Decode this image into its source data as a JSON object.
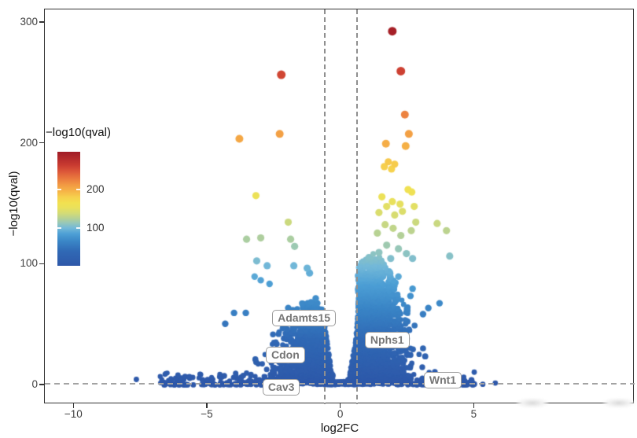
{
  "figure": {
    "background": "#ffffff",
    "panel_border_color": "#333333",
    "tick_label_color": "#404040",
    "threshold_line_color": "#8f8f8f",
    "gene_label_text_color": "#767676",
    "gene_label_border_color": "#9b9b9b"
  },
  "axis": {
    "x_title": "log2FC",
    "y_title": "−log10(qval)"
  },
  "legend": {
    "title": "−log10(qval)"
  },
  "chart_data": {
    "type": "scatter",
    "subtype": "volcano-plot",
    "title": "",
    "xlabel": "log2FC",
    "ylabel": "−log10(qval)",
    "xlim": [
      -11.1,
      11.0
    ],
    "ylim": [
      -15.5,
      311
    ],
    "grid": false,
    "legend_position": "left",
    "x_ticks": [
      {
        "v": -10,
        "label": "−10"
      },
      {
        "v": -5,
        "label": "−5"
      },
      {
        "v": 0,
        "label": "0"
      },
      {
        "v": 5,
        "label": "5"
      }
    ],
    "y_ticks": [
      {
        "v": 0,
        "label": "0"
      },
      {
        "v": 100,
        "label": "100"
      },
      {
        "v": 200,
        "label": "200"
      },
      {
        "v": 300,
        "label": "300"
      }
    ],
    "thresholds": {
      "vlines": [
        -0.6,
        0.6
      ],
      "hline": 1.3,
      "style": "dashed"
    },
    "colorbar": {
      "title": "−log10(qval)",
      "range": [
        2,
        298
      ],
      "ticks": [
        {
          "v": 200,
          "label": "200"
        },
        {
          "v": 100,
          "label": "100"
        }
      ]
    },
    "color_scale_stops": [
      [
        2,
        "#2e58a9"
      ],
      [
        40,
        "#3069b5"
      ],
      [
        65,
        "#3a85c6"
      ],
      [
        85,
        "#4d9fd5"
      ],
      [
        100,
        "#74b9d8"
      ],
      [
        112,
        "#94c6bb"
      ],
      [
        124,
        "#b3d098"
      ],
      [
        138,
        "#d2db77"
      ],
      [
        152,
        "#e9e15c"
      ],
      [
        165,
        "#f2e150"
      ],
      [
        180,
        "#f6d14d"
      ],
      [
        195,
        "#f6b547"
      ],
      [
        212,
        "#f29a43"
      ],
      [
        228,
        "#ea7a3e"
      ],
      [
        245,
        "#dd5a39"
      ],
      [
        262,
        "#cb3d31"
      ],
      [
        280,
        "#b52a2b"
      ],
      [
        298,
        "#a01c26"
      ]
    ],
    "gene_labels": [
      {
        "text": "Adamts15",
        "x": -2.58,
        "y": 62.6
      },
      {
        "text": "Cdon",
        "x": -2.82,
        "y": 32.0
      },
      {
        "text": "Cav3",
        "x": -2.94,
        "y": 5.3
      },
      {
        "text": "Nphs1",
        "x": 0.89,
        "y": 44.3
      },
      {
        "text": "Wnt1",
        "x": 3.1,
        "y": 11.2
      }
    ],
    "outlier_points": [
      {
        "r": 5.5,
        "pts": [
          [
            1.92,
            293
          ],
          [
            2.24,
            260
          ],
          [
            -2.24,
            257
          ]
        ]
      },
      {
        "r": 5.0,
        "pts": [
          [
            2.39,
            224
          ],
          [
            -2.3,
            208
          ],
          [
            2.54,
            208
          ],
          [
            -3.81,
            204
          ],
          [
            1.68,
            200
          ],
          [
            2.42,
            198
          ]
        ]
      },
      {
        "r": 4.6,
        "pts": [
          [
            1.77,
            185
          ],
          [
            2.01,
            183
          ],
          [
            1.62,
            181
          ],
          [
            1.89,
            179
          ],
          [
            2.51,
            162
          ],
          [
            2.65,
            160
          ],
          [
            -3.19,
            157
          ],
          [
            1.53,
            156
          ],
          [
            1.92,
            152
          ],
          [
            2.21,
            150
          ],
          [
            1.71,
            148
          ],
          [
            2.74,
            148
          ],
          [
            2.3,
            144
          ],
          [
            1.42,
            143
          ],
          [
            2.01,
            141
          ],
          [
            -1.98,
            135
          ],
          [
            2.8,
            135
          ],
          [
            3.6,
            134
          ],
          [
            1.65,
            133
          ],
          [
            1.95,
            130
          ],
          [
            2.63,
            128
          ],
          [
            3.95,
            128
          ],
          [
            1.36,
            126
          ],
          [
            2.24,
            124
          ],
          [
            -3.01,
            122
          ],
          [
            -3.54,
            121
          ],
          [
            -1.89,
            121
          ],
          [
            1.71,
            116
          ],
          [
            -1.74,
            115
          ],
          [
            2.15,
            113
          ],
          [
            1.42,
            110
          ],
          [
            2.45,
            109
          ],
          [
            4.07,
            107
          ],
          [
            2.68,
            105
          ],
          [
            1.86,
            105
          ],
          [
            -3.16,
            103
          ],
          [
            1.12,
            103
          ],
          [
            -2.77,
            99
          ],
          [
            -1.77,
            99
          ],
          [
            -1.27,
            97
          ],
          [
            -1.18,
            93
          ]
        ]
      },
      {
        "r": 4.2,
        "pts": [
          [
            1.06,
            92
          ],
          [
            -3.24,
            90
          ],
          [
            2.15,
            90
          ],
          [
            0.77,
            89
          ],
          [
            -3.01,
            87
          ],
          [
            1.3,
            87
          ],
          [
            -2.68,
            84
          ],
          [
            2.68,
            80
          ],
          [
            0.91,
            79
          ],
          [
            2.6,
            74
          ],
          [
            -0.95,
            72
          ],
          [
            3.69,
            68
          ],
          [
            -0.89,
            68
          ],
          [
            -0.94,
            65
          ],
          [
            -1.98,
            64
          ],
          [
            3.27,
            64
          ],
          [
            -4.01,
            60
          ],
          [
            -3.57,
            60
          ],
          [
            3.07,
            59
          ],
          [
            -4.34,
            51
          ]
        ]
      },
      {
        "r": 3.4,
        "pts": [
          [
            4.99,
            11
          ],
          [
            -7.67,
            5
          ],
          [
            -6.46,
            4
          ],
          [
            -6.2,
            6
          ],
          [
            5.31,
            1
          ],
          [
            5.78,
            2
          ]
        ]
      }
    ],
    "dense_cloud": {
      "description": "thousands of low-significance genes forming a V-shaped mass around the fold-change thresholds",
      "seed": 42,
      "right_wing": {
        "n": 1600,
        "x_edge": 0.63,
        "x_spread": 0.85,
        "x_max": 4.6,
        "v_peak": 105,
        "v_center": 1.2,
        "v_width": 3.2
      },
      "left_wing": {
        "n": 1050,
        "x_edge": -0.63,
        "x_spread": 0.8,
        "x_min": -5.6,
        "v_peak": 66,
        "v_center": -1.3,
        "v_width": 3.0
      },
      "inner_band": {
        "n": 520,
        "edge": 0.62,
        "hug": 0.16,
        "v_max": 58,
        "floor_fraction": 0.15
      },
      "tail_left": {
        "n": 150,
        "x0": -6.8,
        "x1": -2.0,
        "v_max": 10
      },
      "tail_right": {
        "n": 90,
        "x0": 2.0,
        "x1": 5.0,
        "v_max": 8
      },
      "dot_radius": 3.1
    }
  }
}
